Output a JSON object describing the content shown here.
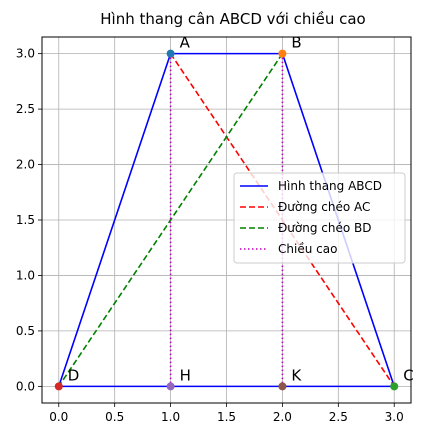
{
  "chart_data": {
    "type": "line",
    "title": "Hình thang cân ABCD với chiều cao",
    "xlabel": "",
    "ylabel": "",
    "xlim": [
      -0.15,
      3.15
    ],
    "ylim": [
      -0.15,
      3.15
    ],
    "x_ticks": [
      0.0,
      0.5,
      1.0,
      1.5,
      2.0,
      2.5,
      3.0
    ],
    "x_tick_labels": [
      "0.0",
      "0.5",
      "1.0",
      "1.5",
      "2.0",
      "2.5",
      "3.0"
    ],
    "y_ticks": [
      0.0,
      0.5,
      1.0,
      1.5,
      2.0,
      2.5,
      3.0
    ],
    "y_tick_labels": [
      "0.0",
      "0.5",
      "1.0",
      "1.5",
      "2.0",
      "2.5",
      "3.0"
    ],
    "grid": true,
    "legend_position": "center-right",
    "series": [
      {
        "name": "Hình thang ABCD",
        "color": "#0000ff",
        "style": "solid",
        "points": [
          [
            0,
            0
          ],
          [
            1,
            3
          ],
          [
            2,
            3
          ],
          [
            3,
            0
          ],
          [
            0,
            0
          ]
        ]
      },
      {
        "name": "Đường chéo AC",
        "color": "#ff0000",
        "style": "dashed",
        "points": [
          [
            1,
            3
          ],
          [
            3,
            0
          ]
        ]
      },
      {
        "name": "Đường chéo BD",
        "color": "#008000",
        "style": "dashed",
        "points": [
          [
            2,
            3
          ],
          [
            0,
            0
          ]
        ]
      },
      {
        "name": "Chiều cao",
        "color": "#bf00bf",
        "style": "dotted",
        "segments": [
          [
            [
              1,
              3
            ],
            [
              1,
              0
            ]
          ],
          [
            [
              2,
              3
            ],
            [
              2,
              0
            ]
          ]
        ]
      }
    ],
    "markers": [
      {
        "x": 1,
        "y": 3,
        "color": "#1f77b4"
      },
      {
        "x": 2,
        "y": 3,
        "color": "#ff7f0e"
      },
      {
        "x": 3,
        "y": 0,
        "color": "#2ca02c"
      },
      {
        "x": 0,
        "y": 0,
        "color": "#d62728"
      },
      {
        "x": 1,
        "y": 0,
        "color": "#9467bd"
      },
      {
        "x": 2,
        "y": 0,
        "color": "#8c564b"
      }
    ],
    "point_labels": [
      {
        "text": "A",
        "x": 1,
        "y": 3
      },
      {
        "text": "B",
        "x": 2,
        "y": 3
      },
      {
        "text": "C",
        "x": 3,
        "y": 0
      },
      {
        "text": "D",
        "x": 0,
        "y": 0
      },
      {
        "text": "H",
        "x": 1,
        "y": 0
      },
      {
        "text": "K",
        "x": 2,
        "y": 0
      }
    ]
  }
}
